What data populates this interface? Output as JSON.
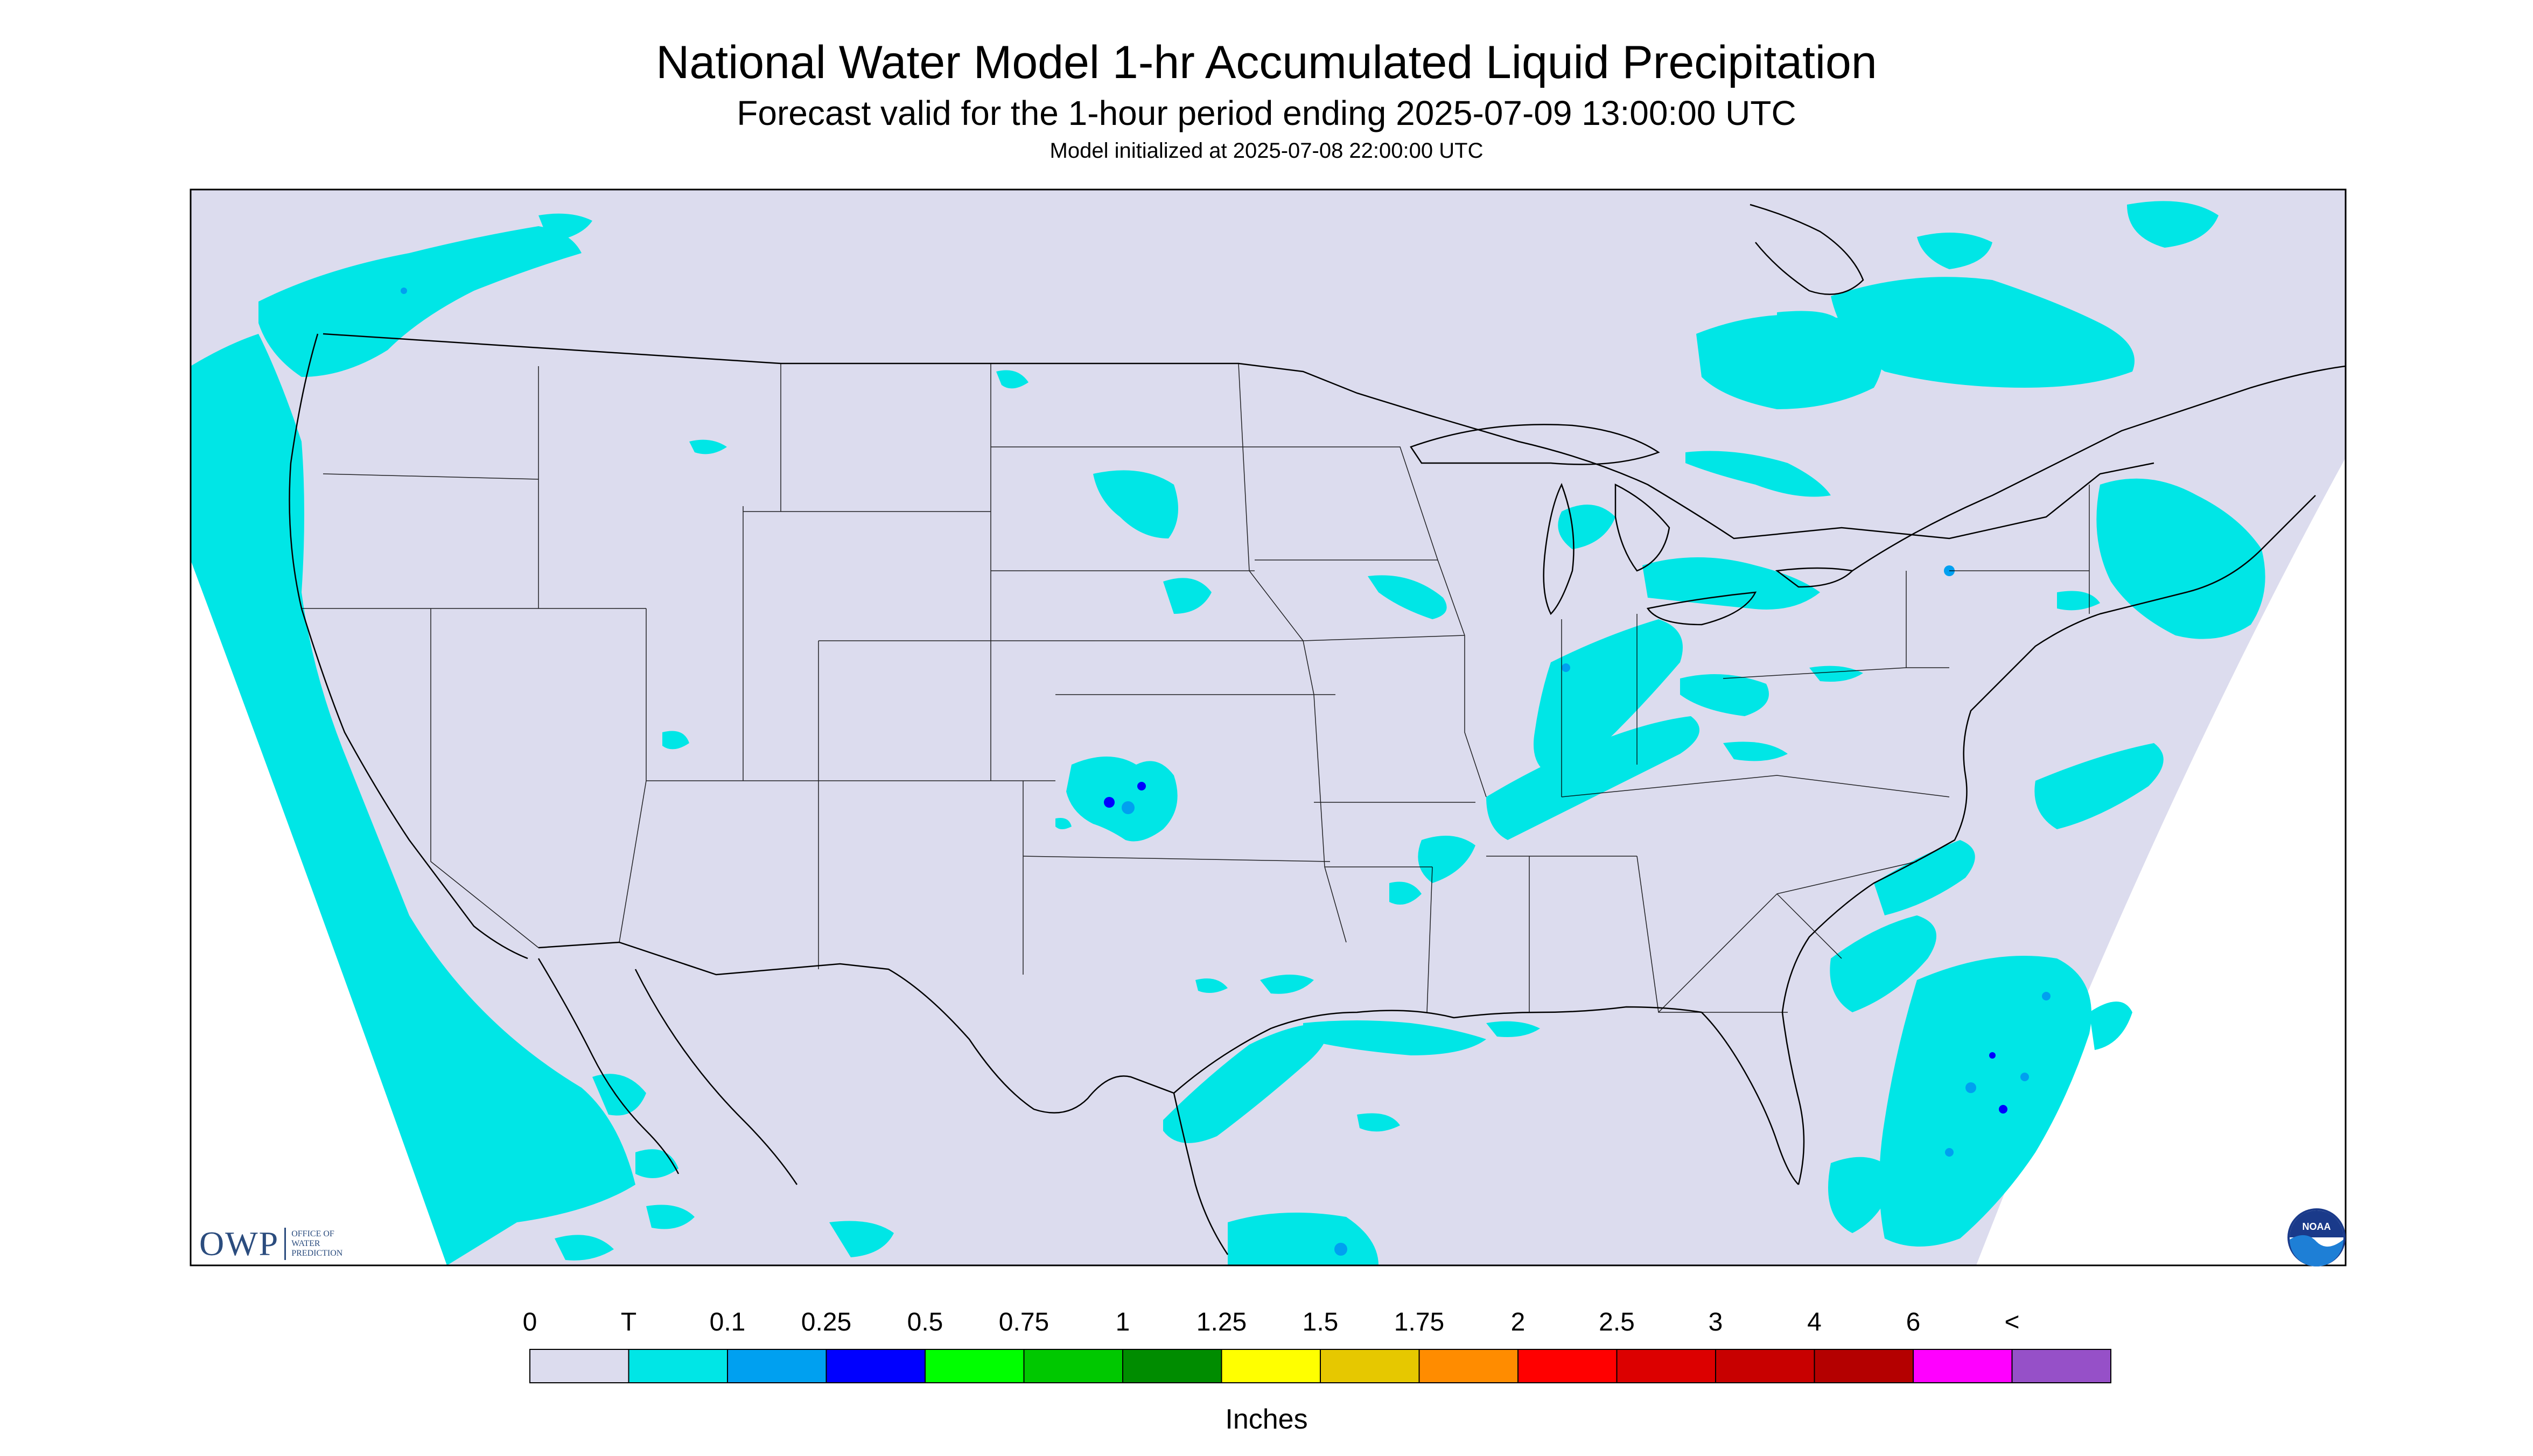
{
  "title": "National Water Model 1-hr Accumulated Liquid Precipitation",
  "subtitle": "Forecast valid for the 1-hour period ending 2025-07-09 13:00:00 UTC",
  "init": "Model initialized at 2025-07-08 22:00:00 UTC",
  "map": {
    "background_color": "#dcdcee",
    "border_color": "#000000"
  },
  "logo_owp": {
    "letters": "OWP",
    "line1": "OFFICE OF",
    "line2": "WATER",
    "line3": "PREDICTION"
  },
  "logo_noaa": {
    "text": "NOAA"
  },
  "legend": {
    "labels": [
      "0",
      "T",
      "0.1",
      "0.25",
      "0.5",
      "0.75",
      "1",
      "1.25",
      "1.5",
      "1.75",
      "2",
      "2.5",
      "3",
      "4",
      "6",
      "<"
    ],
    "colors": [
      "#dcdcee",
      "#00e6e6",
      "#00a0f0",
      "#0000ff",
      "#00ff00",
      "#00c800",
      "#008c00",
      "#ffff00",
      "#e6c800",
      "#ff8c00",
      "#ff0000",
      "#dc0000",
      "#c80000",
      "#b40000",
      "#ff00ff",
      "#9650c8"
    ],
    "units": "Inches"
  }
}
